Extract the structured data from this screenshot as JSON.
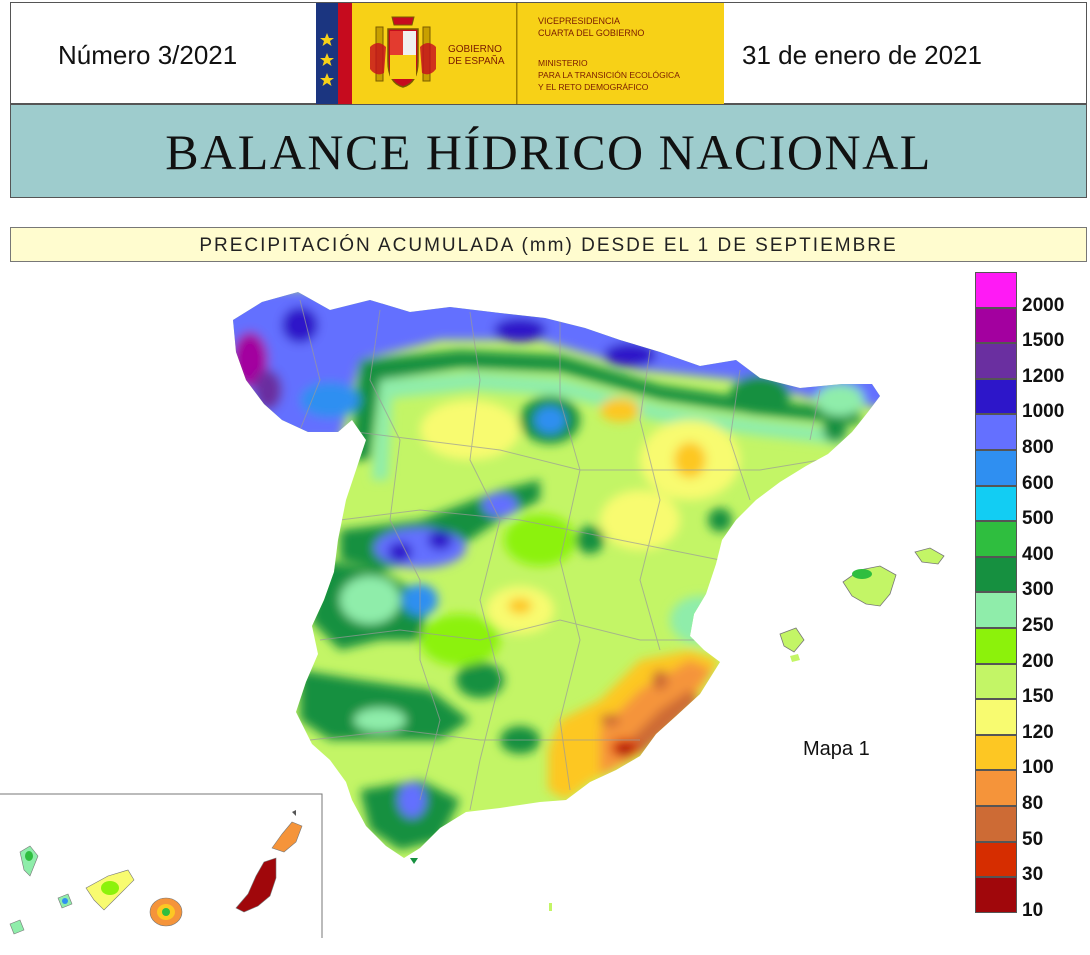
{
  "header": {
    "issue": "Número 3/2021",
    "date": "31 de enero de 2021",
    "logo": {
      "gov_line1": "GOBIERNO",
      "gov_line2": "DE ESPAÑA",
      "vp_line1": "VICEPRESIDENCIA",
      "vp_line2": "CUARTA DEL GOBIERNO",
      "min_line1": "MINISTERIO",
      "min_line2": "PARA LA TRANSICIÓN ECOLÓGICA",
      "min_line3": "Y EL RETO DEMOGRÁFICO",
      "stripe_color": "#1b3580",
      "flag_red": "#c60b1e",
      "flag_yellow": "#f7d117"
    }
  },
  "title": "BALANCE HÍDRICO NACIONAL",
  "subtitle": "PRECIPITACIÓN ACUMULADA (mm) DESDE EL 1 DE SEPTIEMBRE",
  "map_label": "Mapa 1",
  "legend": {
    "classes": [
      {
        "color": "#ff1af5",
        "label": ""
      },
      {
        "color": "#a3009f",
        "label": "2000"
      },
      {
        "color": "#6a2fa0",
        "label": "1500"
      },
      {
        "color": "#2d16c9",
        "label": "1200"
      },
      {
        "color": "#6470ff",
        "label": "1000"
      },
      {
        "color": "#2f8ff1",
        "label": "800"
      },
      {
        "color": "#12cdf3",
        "label": "600"
      },
      {
        "color": "#2fbe3f",
        "label": "500"
      },
      {
        "color": "#169040",
        "label": "400"
      },
      {
        "color": "#8fedaa",
        "label": "300"
      },
      {
        "color": "#8cf20b",
        "label": "250"
      },
      {
        "color": "#c3f566",
        "label": "200"
      },
      {
        "color": "#f8fb70",
        "label": "150"
      },
      {
        "color": "#fdc723",
        "label": "120"
      },
      {
        "color": "#f5943a",
        "label": "100"
      },
      {
        "color": "#cd6b35",
        "label": "80"
      },
      {
        "color": "#d62d00",
        "label": "50"
      },
      {
        "color": "#a0070b",
        "label": "30"
      },
      {
        "color": "",
        "label": "10"
      }
    ]
  }
}
